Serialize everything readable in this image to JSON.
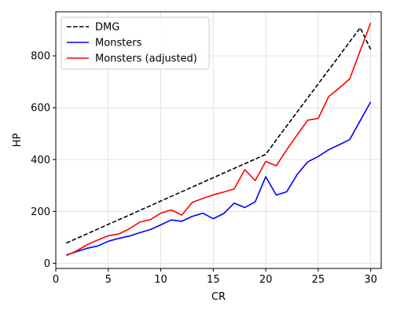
{
  "chart_data": {
    "type": "line",
    "xlabel": "CR",
    "ylabel": "HP",
    "xlim": [
      0,
      31
    ],
    "ylim": [
      -20,
      970
    ],
    "xticks": [
      0,
      5,
      10,
      15,
      20,
      25,
      30
    ],
    "yticks": [
      0,
      200,
      400,
      600,
      800
    ],
    "grid": true,
    "legend_position": "top-left",
    "x": [
      1,
      2,
      3,
      4,
      5,
      6,
      7,
      8,
      9,
      10,
      11,
      12,
      13,
      14,
      15,
      16,
      17,
      18,
      19,
      20,
      21,
      22,
      23,
      24,
      25,
      26,
      27,
      28,
      29,
      30
    ],
    "series": [
      {
        "name": "DMG",
        "color": "#000000",
        "dash": "dashed",
        "values": [
          78,
          96,
          114,
          132,
          150,
          168,
          186,
          204,
          222,
          240,
          258,
          276,
          294,
          312,
          330,
          348,
          366,
          384,
          402,
          420,
          476,
          530,
          584,
          638,
          692,
          746,
          800,
          854,
          908,
          825
        ]
      },
      {
        "name": "Monsters",
        "color": "#0000ff",
        "dash": "solid",
        "values": [
          32,
          45,
          58,
          67,
          85,
          96,
          105,
          118,
          130,
          148,
          167,
          162,
          181,
          193,
          172,
          192,
          232,
          215,
          237,
          334,
          263,
          276,
          343,
          391,
          412,
          438,
          457,
          477,
          550,
          622
        ]
      },
      {
        "name": "Monsters (adjusted)",
        "color": "#ff0000",
        "dash": "solid",
        "values": [
          30,
          48,
          72,
          90,
          106,
          113,
          133,
          159,
          168,
          193,
          206,
          186,
          235,
          250,
          264,
          275,
          287,
          361,
          319,
          393,
          376,
          438,
          496,
          552,
          559,
          643,
          676,
          711,
          820,
          927
        ]
      }
    ]
  }
}
